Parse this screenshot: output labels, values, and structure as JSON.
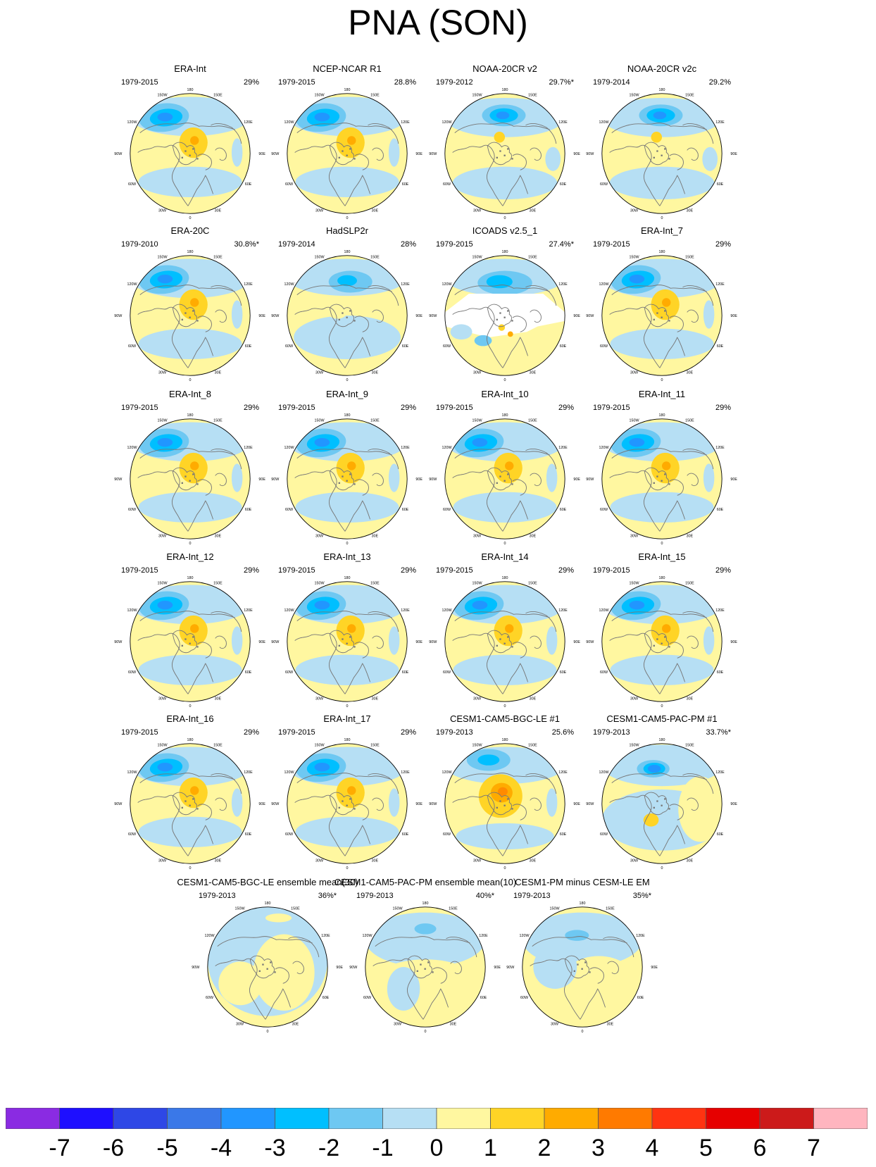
{
  "title": "PNA (SON)",
  "panels": [
    {
      "name": "ERA-Int",
      "years": "1979-2015",
      "pct": "29%",
      "style": "era"
    },
    {
      "name": "NCEP-NCAR R1",
      "years": "1979-2015",
      "pct": "28.8%",
      "style": "era"
    },
    {
      "name": "NOAA-20CR v2",
      "years": "1979-2012",
      "pct": "29.7%*",
      "style": "noaa"
    },
    {
      "name": "NOAA-20CR v2c",
      "years": "1979-2014",
      "pct": "29.2%",
      "style": "noaa"
    },
    {
      "name": "ERA-20C",
      "years": "1979-2010",
      "pct": "30.8%*",
      "style": "era"
    },
    {
      "name": "HadSLP2r",
      "years": "1979-2014",
      "pct": "28%",
      "style": "had"
    },
    {
      "name": "ICOADS v2.5_1",
      "years": "1979-2015",
      "pct": "27.4%*",
      "style": "icoads"
    },
    {
      "name": "ERA-Int_7",
      "years": "1979-2015",
      "pct": "29%",
      "style": "era"
    },
    {
      "name": "ERA-Int_8",
      "years": "1979-2015",
      "pct": "29%",
      "style": "era"
    },
    {
      "name": "ERA-Int_9",
      "years": "1979-2015",
      "pct": "29%",
      "style": "era"
    },
    {
      "name": "ERA-Int_10",
      "years": "1979-2015",
      "pct": "29%",
      "style": "era"
    },
    {
      "name": "ERA-Int_11",
      "years": "1979-2015",
      "pct": "29%",
      "style": "era"
    },
    {
      "name": "ERA-Int_12",
      "years": "1979-2015",
      "pct": "29%",
      "style": "era"
    },
    {
      "name": "ERA-Int_13",
      "years": "1979-2015",
      "pct": "29%",
      "style": "era"
    },
    {
      "name": "ERA-Int_14",
      "years": "1979-2015",
      "pct": "29%",
      "style": "era"
    },
    {
      "name": "ERA-Int_15",
      "years": "1979-2015",
      "pct": "29%",
      "style": "era"
    },
    {
      "name": "ERA-Int_16",
      "years": "1979-2015",
      "pct": "29%",
      "style": "era"
    },
    {
      "name": "ERA-Int_17",
      "years": "1979-2015",
      "pct": "29%",
      "style": "era"
    },
    {
      "name": "CESM1-CAM5-BGC-LE #1",
      "years": "1979-2013",
      "pct": "25.6%",
      "style": "bgc"
    },
    {
      "name": "CESM1-CAM5-PAC-PM #1",
      "years": "1979-2013",
      "pct": "33.7%*",
      "style": "pac"
    },
    {
      "name": "CESM1-CAM5-BGC-LE ensemble mean(30)",
      "years": "1979-2013",
      "pct": "36%*",
      "style": "em"
    },
    {
      "name": "CESM1-CAM5-PAC-PM ensemble mean(10)",
      "years": "1979-2013",
      "pct": "40%*",
      "style": "pacem"
    },
    {
      "name": "CESM1-PM minus CESM-LE EM",
      "years": "1979-2013",
      "pct": "35%*",
      "style": "diff"
    }
  ],
  "map_labels": {
    "top": "180",
    "top_left": "150W",
    "top_right": "150E",
    "upper_left": "120W",
    "upper_right": "120E",
    "left": "90W",
    "right": "90E",
    "lower_left": "60W",
    "lower_right": "60E",
    "bottom_left": "30W",
    "bottom_right": "30E",
    "bottom": "0"
  },
  "colorbar": {
    "colors": [
      "#8a2be2",
      "#1e0fff",
      "#2e47e6",
      "#3a78e8",
      "#2196ff",
      "#00bfff",
      "#6ec8f2",
      "#b6dff4",
      "#fff7a0",
      "#ffd426",
      "#ffab00",
      "#ff7a00",
      "#ff3311",
      "#e60000",
      "#cc1a1a",
      "#ffb5bf"
    ],
    "ticks": [
      "-7",
      "-6",
      "-5",
      "-4",
      "-3",
      "-2",
      "-1",
      "0",
      "1",
      "2",
      "3",
      "4",
      "5",
      "6",
      "7"
    ]
  }
}
